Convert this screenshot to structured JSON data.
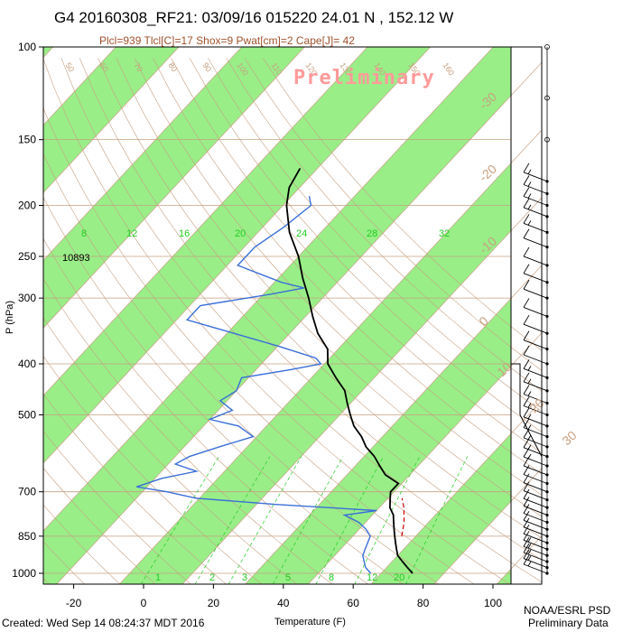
{
  "header": {
    "title": "G4 20160308_RF21: 03/09/16 015220  24.01 N , 152.12 W",
    "subtitle": "Plcl=939 Tlcl[C]=17 Shox=9 Pwat[cm]=2 Cape[J]= 42",
    "preliminary_watermark": "Preliminary"
  },
  "footer": {
    "created": "Created: Wed Sep 14 08:24:37 MDT 2016",
    "org": "NOAA/ESRL PSD",
    "status": "Preliminary Data"
  },
  "colors": {
    "green_band": "#99ee88",
    "temperature": "#000000",
    "dewpoint": "#3a6fd8",
    "parcel": "#cc0000",
    "lines": "#c8a080",
    "mixing": "#22cc22",
    "preliminary": "#ff9b9b"
  },
  "chart_data": {
    "type": "skew-t log-p",
    "xlabel": "Temperature (F)",
    "ylabel": "P (hPa)",
    "xlim": [
      -28,
      108
    ],
    "ylim": [
      1040,
      100
    ],
    "x_ticks": [
      "-20",
      "0",
      "20",
      "40",
      "60",
      "80",
      "100"
    ],
    "y_ticks": [
      "100",
      "150",
      "200",
      "250",
      "300",
      "400",
      "500",
      "700",
      "850",
      "1000"
    ],
    "isotherm_labels_C": [
      "-30",
      "-20",
      "-10",
      "0",
      "10",
      "20",
      "30"
    ],
    "mixing_ratio_labels": [
      "8",
      "12",
      "16",
      "20",
      "24",
      "28",
      "32"
    ],
    "mixing_ratio_bottom_labels": [
      "1",
      "2",
      "3",
      "5",
      "8",
      "12",
      "20"
    ],
    "dry_adiabat_labels": [
      "50",
      "60",
      "70",
      "80",
      "90",
      "100",
      "110",
      "120",
      "130",
      "140",
      "150",
      "160"
    ],
    "height_annotation": "10893",
    "temperature_profile": [
      {
        "p": 1000,
        "t": 77
      },
      {
        "p": 975,
        "t": 74
      },
      {
        "p": 950,
        "t": 71
      },
      {
        "p": 925,
        "t": 68
      },
      {
        "p": 900,
        "t": 66
      },
      {
        "p": 875,
        "t": 64
      },
      {
        "p": 850,
        "t": 62
      },
      {
        "p": 825,
        "t": 60
      },
      {
        "p": 800,
        "t": 58
      },
      {
        "p": 775,
        "t": 56
      },
      {
        "p": 750,
        "t": 53
      },
      {
        "p": 725,
        "t": 51
      },
      {
        "p": 700,
        "t": 49
      },
      {
        "p": 675,
        "t": 49
      },
      {
        "p": 650,
        "t": 43
      },
      {
        "p": 625,
        "t": 39
      },
      {
        "p": 600,
        "t": 35
      },
      {
        "p": 575,
        "t": 30
      },
      {
        "p": 550,
        "t": 26
      },
      {
        "p": 525,
        "t": 21
      },
      {
        "p": 500,
        "t": 17
      },
      {
        "p": 475,
        "t": 13
      },
      {
        "p": 450,
        "t": 9
      },
      {
        "p": 425,
        "t": 3
      },
      {
        "p": 400,
        "t": -3
      },
      {
        "p": 375,
        "t": -7
      },
      {
        "p": 350,
        "t": -14
      },
      {
        "p": 325,
        "t": -20
      },
      {
        "p": 300,
        "t": -26
      },
      {
        "p": 275,
        "t": -33
      },
      {
        "p": 250,
        "t": -40
      },
      {
        "p": 225,
        "t": -49
      },
      {
        "p": 200,
        "t": -57
      },
      {
        "p": 185,
        "t": -61
      },
      {
        "p": 170,
        "t": -63
      }
    ],
    "dewpoint_profile": [
      {
        "p": 1000,
        "t": 65
      },
      {
        "p": 975,
        "t": 62
      },
      {
        "p": 950,
        "t": 60
      },
      {
        "p": 925,
        "t": 58
      },
      {
        "p": 900,
        "t": 57
      },
      {
        "p": 875,
        "t": 56
      },
      {
        "p": 850,
        "t": 55
      },
      {
        "p": 825,
        "t": 52
      },
      {
        "p": 800,
        "t": 48
      },
      {
        "p": 775,
        "t": 42
      },
      {
        "p": 760,
        "t": 50
      },
      {
        "p": 740,
        "t": 20
      },
      {
        "p": 720,
        "t": -5
      },
      {
        "p": 700,
        "t": -15
      },
      {
        "p": 685,
        "t": -25
      },
      {
        "p": 660,
        "t": -20
      },
      {
        "p": 640,
        "t": -12
      },
      {
        "p": 620,
        "t": -20
      },
      {
        "p": 600,
        "t": -18
      },
      {
        "p": 575,
        "t": -12
      },
      {
        "p": 550,
        "t": -5
      },
      {
        "p": 525,
        "t": -12
      },
      {
        "p": 510,
        "t": -22
      },
      {
        "p": 490,
        "t": -18
      },
      {
        "p": 470,
        "t": -24
      },
      {
        "p": 450,
        "t": -22
      },
      {
        "p": 425,
        "t": -24
      },
      {
        "p": 410,
        "t": -12
      },
      {
        "p": 400,
        "t": -5
      },
      {
        "p": 390,
        "t": -8
      },
      {
        "p": 370,
        "t": -22
      },
      {
        "p": 350,
        "t": -38
      },
      {
        "p": 330,
        "t": -55
      },
      {
        "p": 310,
        "t": -55
      },
      {
        "p": 295,
        "t": -38
      },
      {
        "p": 287,
        "t": -30
      },
      {
        "p": 280,
        "t": -38
      },
      {
        "p": 260,
        "t": -55
      },
      {
        "p": 240,
        "t": -55
      },
      {
        "p": 220,
        "t": -52
      },
      {
        "p": 200,
        "t": -50
      },
      {
        "p": 192,
        "t": -53
      }
    ],
    "lifted_parcel_profile": [
      {
        "p": 850,
        "t": 64
      },
      {
        "p": 800,
        "t": 61
      },
      {
        "p": 750,
        "t": 57
      },
      {
        "p": 720,
        "t": 54
      }
    ],
    "wind_barbs": [
      {
        "p": 1000,
        "speed_kt": 15
      },
      {
        "p": 975,
        "speed_kt": 15
      },
      {
        "p": 950,
        "speed_kt": 15
      },
      {
        "p": 925,
        "speed_kt": 15
      },
      {
        "p": 900,
        "speed_kt": 15
      },
      {
        "p": 875,
        "speed_kt": 10
      },
      {
        "p": 850,
        "speed_kt": 10
      },
      {
        "p": 825,
        "speed_kt": 10
      },
      {
        "p": 800,
        "speed_kt": 10
      },
      {
        "p": 775,
        "speed_kt": 10
      },
      {
        "p": 750,
        "speed_kt": 10
      },
      {
        "p": 725,
        "speed_kt": 10
      },
      {
        "p": 700,
        "speed_kt": 10
      },
      {
        "p": 675,
        "speed_kt": 10
      },
      {
        "p": 650,
        "speed_kt": 10
      },
      {
        "p": 625,
        "speed_kt": 15
      },
      {
        "p": 600,
        "speed_kt": 15
      },
      {
        "p": 575,
        "speed_kt": 15
      },
      {
        "p": 550,
        "speed_kt": 15
      },
      {
        "p": 525,
        "speed_kt": 15
      },
      {
        "p": 500,
        "speed_kt": 15
      },
      {
        "p": 475,
        "speed_kt": 15
      },
      {
        "p": 450,
        "speed_kt": 15
      },
      {
        "p": 425,
        "speed_kt": 15
      },
      {
        "p": 400,
        "speed_kt": 10
      },
      {
        "p": 375,
        "speed_kt": 10
      },
      {
        "p": 350,
        "speed_kt": 10
      },
      {
        "p": 325,
        "speed_kt": 10
      },
      {
        "p": 300,
        "speed_kt": 10
      },
      {
        "p": 280,
        "speed_kt": 10
      },
      {
        "p": 260,
        "speed_kt": 10
      },
      {
        "p": 240,
        "speed_kt": 10
      },
      {
        "p": 225,
        "speed_kt": 15
      },
      {
        "p": 210,
        "speed_kt": 15
      },
      {
        "p": 200,
        "speed_kt": 15
      },
      {
        "p": 190,
        "speed_kt": 15
      },
      {
        "p": 180,
        "speed_kt": 15
      },
      {
        "p": 150,
        "speed_kt": 0
      },
      {
        "p": 125,
        "speed_kt": 0
      },
      {
        "p": 100,
        "speed_kt": 0
      }
    ]
  }
}
